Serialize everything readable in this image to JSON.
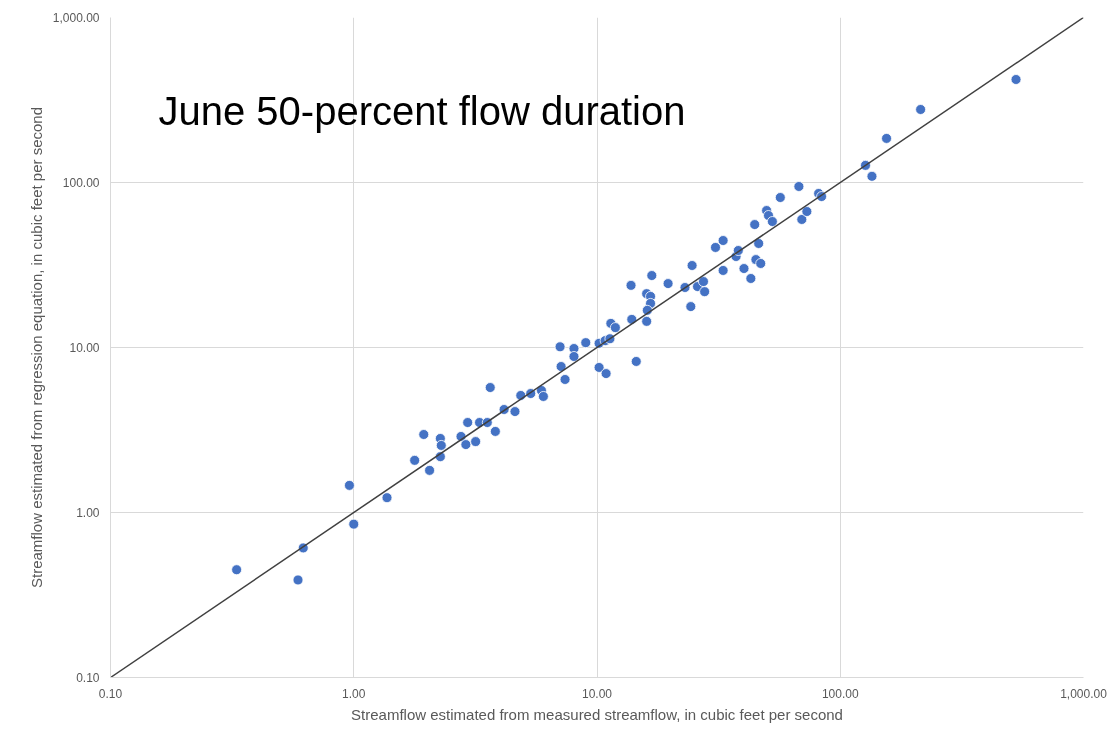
{
  "chart_data": {
    "type": "scatter",
    "title": "June 50-percent flow duration",
    "xlabel": "Streamflow estimated from measured streamflow, in cubic feet per second",
    "ylabel": "Streamflow estimated from regression equation, in cubic feet per second",
    "log": "xy",
    "grid": true,
    "xlim": [
      0.1,
      1000
    ],
    "ylim": [
      0.1,
      1000
    ],
    "xticks": [
      {
        "value": 0.1,
        "label": "0.10"
      },
      {
        "value": 1,
        "label": "1.00"
      },
      {
        "value": 10,
        "label": "10.00"
      },
      {
        "value": 100,
        "label": "100.00"
      },
      {
        "value": 1000,
        "label": "1,000.00"
      }
    ],
    "yticks": [
      {
        "value": 0.1,
        "label": "0.10"
      },
      {
        "value": 1,
        "label": "1.00"
      },
      {
        "value": 10,
        "label": "10.00"
      },
      {
        "value": 100,
        "label": "100.00"
      },
      {
        "value": 1000,
        "label": "1,000.00"
      }
    ],
    "series": [
      {
        "color": "#4472c4",
        "marker": "circle",
        "x": [
          0.33,
          0.59,
          0.62,
          0.96,
          1.0,
          1.37,
          1.78,
          1.94,
          2.05,
          2.27,
          2.29,
          2.27,
          2.76,
          2.89,
          2.94,
          3.17,
          3.29,
          3.54,
          3.64,
          3.82,
          4.15,
          4.6,
          4.86,
          5.34,
          5.91,
          6.02,
          7.05,
          7.12,
          7.39,
          8.04,
          8.04,
          8.99,
          10.2,
          10.2,
          10.9,
          10.8,
          11.3,
          11.4,
          11.9,
          14.5,
          13.8,
          13.9,
          16.0,
          16.0,
          16.6,
          16.8,
          16.6,
          16.1,
          19.6,
          23.0,
          24.6,
          24.3,
          25.9,
          27.4,
          27.7,
          30.7,
          33.0,
          33.0,
          37.3,
          38.1,
          40.2,
          42.9,
          44.5,
          45.0,
          46.2,
          47.1,
          49.8,
          50.7,
          52.6,
          56.7,
          67.6,
          69.5,
          72.9,
          81.5,
          83.8,
          127,
          135,
          155,
          214,
          528
        ],
        "values": [
          0.45,
          0.39,
          0.61,
          1.46,
          0.85,
          1.23,
          2.07,
          2.97,
          1.8,
          2.81,
          2.55,
          2.18,
          2.89,
          2.58,
          3.51,
          2.69,
          3.51,
          3.51,
          5.72,
          3.1,
          4.21,
          4.09,
          5.12,
          5.26,
          5.49,
          5.05,
          10.1,
          7.67,
          6.4,
          9.86,
          8.82,
          10.7,
          10.6,
          7.57,
          6.95,
          11.0,
          11.3,
          14.0,
          13.2,
          8.23,
          23.8,
          14.8,
          21.2,
          14.4,
          20.4,
          27.3,
          18.5,
          16.8,
          24.4,
          23.1,
          31.4,
          17.7,
          23.4,
          25.1,
          21.8,
          40.4,
          44.5,
          29.3,
          35.6,
          38.7,
          30.1,
          26.2,
          55.6,
          34.1,
          42.7,
          32.3,
          67.6,
          63.1,
          58.0,
          81.1,
          94.6,
          59.7,
          66.7,
          85.8,
          82.2,
          127,
          109,
          185,
          277,
          421
        ]
      },
      {
        "type": "line",
        "color": "#404040",
        "x": [
          0.1,
          1000
        ],
        "values": [
          0.1,
          1000
        ]
      }
    ]
  }
}
